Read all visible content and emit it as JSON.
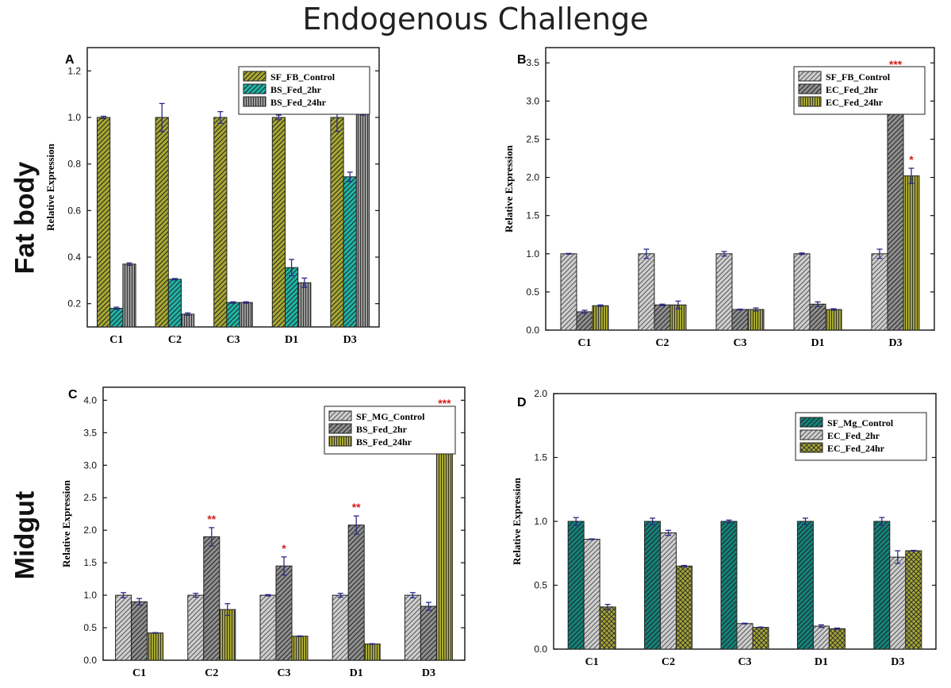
{
  "title": "Endogenous Challenge",
  "row_labels": [
    "Fat body",
    "Midgut"
  ],
  "chart_data": [
    {
      "panel": "A",
      "type": "bar",
      "ylabel": "Relative Expression",
      "ylim": [
        0.1,
        1.3
      ],
      "yticks": [
        0.2,
        0.4,
        0.6,
        0.8,
        1.0,
        1.2
      ],
      "ytick_labels": [
        "0.2",
        "0.4",
        "0.6",
        "0.8",
        "1.0",
        "1.2"
      ],
      "categories": [
        "C1",
        "C2",
        "C3",
        "D1",
        "D3"
      ],
      "series": [
        {
          "name": "SF_FB_Control",
          "values": [
            1.0,
            1.0,
            1.0,
            1.0,
            1.0
          ],
          "errors": [
            0.005,
            0.06,
            0.025,
            0.01,
            0.06
          ],
          "pattern": "diag-dark",
          "color": "#a8a832"
        },
        {
          "name": "BS_Fed_2hr",
          "values": [
            0.18,
            0.305,
            0.205,
            0.355,
            0.745
          ],
          "errors": [
            0.005,
            0.003,
            0.003,
            0.035,
            0.02
          ],
          "pattern": "diag-dark",
          "color": "#1fb5a7"
        },
        {
          "name": "BS_Fed_24hr",
          "values": [
            0.37,
            0.155,
            0.205,
            0.29,
            1.02
          ],
          "errors": [
            0.005,
            0.005,
            0.003,
            0.02,
            0.01
          ],
          "pattern": "vert",
          "color": "#9a9a9a"
        }
      ],
      "significance": [],
      "legend_position": "top-right"
    },
    {
      "panel": "B",
      "type": "bar",
      "ylabel": "Relative Expression",
      "ylim": [
        0.0,
        3.7
      ],
      "yticks": [
        0.0,
        0.5,
        1.0,
        1.5,
        2.0,
        2.5,
        3.0,
        3.5
      ],
      "ytick_labels": [
        "0.0",
        "0.5",
        "1.0",
        "1.5",
        "2.0",
        "2.5",
        "3.0",
        "3.5"
      ],
      "categories": [
        "C1",
        "C2",
        "C3",
        "D1",
        "D3"
      ],
      "series": [
        {
          "name": "SF_FB_Control",
          "values": [
            1.0,
            1.0,
            1.0,
            1.0,
            1.0
          ],
          "errors": [
            0.005,
            0.06,
            0.03,
            0.01,
            0.06
          ],
          "pattern": "diag-light",
          "color": "#cfcfcf"
        },
        {
          "name": "EC_Fed_2hr",
          "values": [
            0.24,
            0.33,
            0.27,
            0.34,
            3.32
          ],
          "errors": [
            0.02,
            0.01,
            0.005,
            0.03,
            0.05
          ],
          "pattern": "diag-dark",
          "color": "#8f8f8f"
        },
        {
          "name": "EC_Fed_24hr",
          "values": [
            0.32,
            0.33,
            0.27,
            0.27,
            2.02
          ],
          "errors": [
            0.01,
            0.05,
            0.02,
            0.01,
            0.1
          ],
          "pattern": "vert",
          "color": "#a8a832"
        }
      ],
      "significance": [
        {
          "category": "D3",
          "series": "EC_Fed_2hr",
          "label": "***"
        },
        {
          "category": "D3",
          "series": "EC_Fed_24hr",
          "label": "*"
        }
      ],
      "legend_position": "top-right"
    },
    {
      "panel": "C",
      "type": "bar",
      "ylabel": "Relative Expression",
      "ylim": [
        0.0,
        4.2
      ],
      "yticks": [
        0.0,
        0.5,
        1.0,
        1.5,
        2.0,
        2.5,
        3.0,
        3.5,
        4.0
      ],
      "ytick_labels": [
        "0.0",
        "0.5",
        "1.0",
        "1.5",
        "2.0",
        "2.5",
        "3.0",
        "3.5",
        "4.0"
      ],
      "categories": [
        "C1",
        "C2",
        "C3",
        "D1",
        "D3"
      ],
      "series": [
        {
          "name": "SF_MG_Control",
          "values": [
            1.0,
            1.0,
            1.0,
            1.0,
            1.0
          ],
          "errors": [
            0.04,
            0.03,
            0.01,
            0.03,
            0.04
          ],
          "pattern": "diag-light",
          "color": "#cfcfcf"
        },
        {
          "name": "BS_Fed_2hr",
          "values": [
            0.9,
            1.9,
            1.45,
            2.08,
            0.83
          ],
          "errors": [
            0.05,
            0.14,
            0.14,
            0.14,
            0.06
          ],
          "pattern": "diag-dark",
          "color": "#8f8f8f"
        },
        {
          "name": "BS_Fed_24hr",
          "values": [
            0.42,
            0.78,
            0.37,
            0.25,
            3.76
          ],
          "errors": [
            0.005,
            0.09,
            0.005,
            0.005,
            0.06
          ],
          "pattern": "vert",
          "color": "#a8a832"
        }
      ],
      "significance": [
        {
          "category": "C2",
          "series": "BS_Fed_2hr",
          "label": "**"
        },
        {
          "category": "C3",
          "series": "BS_Fed_2hr",
          "label": "*"
        },
        {
          "category": "D1",
          "series": "BS_Fed_2hr",
          "label": "**"
        },
        {
          "category": "D3",
          "series": "BS_Fed_24hr",
          "label": "***"
        }
      ],
      "legend_position": "top-right"
    },
    {
      "panel": "D",
      "type": "bar",
      "ylabel": "Relative Expression",
      "ylim": [
        0.0,
        2.0
      ],
      "yticks": [
        0.0,
        0.5,
        1.0,
        1.5,
        2.0
      ],
      "ytick_labels": [
        "0.0",
        "0.5",
        "1.0",
        "1.5",
        "2.0"
      ],
      "categories": [
        "C1",
        "C2",
        "C3",
        "D1",
        "D3"
      ],
      "series": [
        {
          "name": "SF_Mg_Control",
          "values": [
            1.0,
            1.0,
            1.0,
            1.0,
            1.0
          ],
          "errors": [
            0.03,
            0.025,
            0.01,
            0.025,
            0.03
          ],
          "pattern": "diag-dark",
          "color": "#13837a"
        },
        {
          "name": "EC_Fed_2hr",
          "values": [
            0.86,
            0.91,
            0.2,
            0.18,
            0.72
          ],
          "errors": [
            0.003,
            0.02,
            0.003,
            0.01,
            0.05
          ],
          "pattern": "diag-light",
          "color": "#cfcfcf"
        },
        {
          "name": "EC_Fed_24hr",
          "values": [
            0.33,
            0.65,
            0.17,
            0.16,
            0.77
          ],
          "errors": [
            0.02,
            0.005,
            0.003,
            0.005,
            0.003
          ],
          "pattern": "cross",
          "color": "#a8a832"
        }
      ],
      "significance": [],
      "legend_position": "top-right"
    }
  ]
}
